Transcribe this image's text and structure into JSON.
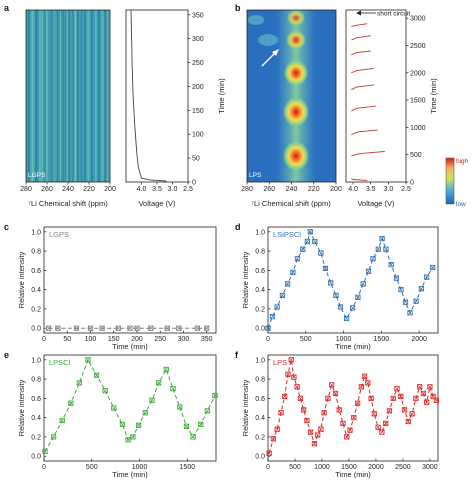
{
  "chart_data": [
    {
      "panel": "a",
      "type": "heatmap",
      "inset_label": "LGPS",
      "xlabel": "⁷Li Chemical shift (ppm)",
      "x_ticks": [
        280,
        260,
        240,
        220,
        200
      ],
      "xlim": [
        280,
        200
      ],
      "voltage_profile": {
        "type": "line",
        "xlabel": "Voltage (V)",
        "ylabel": "Time (min)",
        "x_ticks": [
          "4.0",
          "3.5",
          "3.0",
          "2.5"
        ],
        "y_ticks": [
          0,
          50,
          100,
          150,
          200,
          250,
          300,
          350
        ],
        "xlim": [
          4.5,
          2.5
        ],
        "ylim": [
          0,
          360
        ],
        "points": [
          [
            4.34,
            360
          ],
          [
            4.32,
            300
          ],
          [
            4.3,
            240
          ],
          [
            4.27,
            180
          ],
          [
            4.22,
            120
          ],
          [
            4.15,
            60
          ],
          [
            4.1,
            30
          ],
          [
            4.0,
            8
          ],
          [
            3.7,
            4
          ],
          [
            3.2,
            2
          ]
        ]
      }
    },
    {
      "panel": "b",
      "type": "heatmap",
      "inset_label": "LPS",
      "xlabel": "⁷Li Chemical shift (ppm)",
      "x_ticks": [
        280,
        260,
        240,
        220,
        200
      ],
      "xlim": [
        280,
        200
      ],
      "annotation": "short circuit",
      "colorbar": {
        "high": "high",
        "low": "low"
      },
      "hotspots": [
        {
          "shift": 232,
          "time": 500,
          "intensity": 1.0
        },
        {
          "shift": 233,
          "time": 1300,
          "intensity": 0.85
        },
        {
          "shift": 233,
          "time": 2000,
          "intensity": 0.8
        },
        {
          "shift": 232,
          "time": 2600,
          "intensity": 0.6
        }
      ],
      "voltage_profile": {
        "type": "line",
        "xlabel": "Voltage (V)",
        "ylabel": "Time (min)",
        "x_ticks": [
          "4.0",
          "3.5",
          "3.0",
          "2.5"
        ],
        "y_ticks": [
          0,
          500,
          1000,
          1500,
          2000,
          2500,
          3000
        ],
        "xlim": [
          4.2,
          2.5
        ],
        "ylim": [
          0,
          3150
        ],
        "cycles": [
          [
            [
              3.6,
              30
            ],
            [
              4.0,
              45
            ],
            [
              4.05,
              60
            ]
          ],
          [
            [
              4.05,
              480
            ],
            [
              3.8,
              520
            ],
            [
              3.1,
              560
            ]
          ],
          [
            [
              4.05,
              870
            ],
            [
              3.85,
              920
            ],
            [
              3.3,
              950
            ]
          ],
          [
            [
              4.05,
              1300
            ],
            [
              3.9,
              1350
            ],
            [
              3.35,
              1390
            ]
          ],
          [
            [
              4.05,
              1690
            ],
            [
              3.9,
              1740
            ],
            [
              3.4,
              1780
            ]
          ],
          [
            [
              4.05,
              2000
            ],
            [
              3.9,
              2040
            ],
            [
              3.4,
              2080
            ]
          ],
          [
            [
              4.05,
              2330
            ],
            [
              3.9,
              2370
            ],
            [
              3.5,
              2400
            ]
          ],
          [
            [
              4.05,
              2600
            ],
            [
              3.9,
              2640
            ],
            [
              3.5,
              2680
            ]
          ],
          [
            [
              4.05,
              2850
            ],
            [
              3.9,
              2870
            ],
            [
              3.6,
              2900
            ]
          ]
        ]
      }
    },
    {
      "panel": "c",
      "type": "line",
      "series_label": "LGPS",
      "color": "#7f7f7f",
      "xlabel": "Time (min)",
      "ylabel": "Relative intensity",
      "xlim": [
        0,
        370
      ],
      "ylim": [
        -0.05,
        1.05
      ],
      "x_ticks": [
        0,
        50,
        100,
        150,
        200,
        250,
        300,
        350
      ],
      "y_ticks": [
        "0.0",
        "0.2",
        "0.4",
        "0.6",
        "0.8",
        "1.0"
      ],
      "x": [
        10,
        30,
        70,
        100,
        125,
        160,
        185,
        200,
        230,
        265,
        290,
        330,
        350
      ],
      "y": [
        0,
        0,
        0,
        0,
        0,
        0,
        0,
        0,
        0,
        0,
        0,
        0,
        0
      ]
    },
    {
      "panel": "d",
      "type": "line",
      "series_label": "LSiPSCl",
      "color": "#2f6fad",
      "xlabel": "Time (min)",
      "ylabel": "Relative intensity",
      "xlim": [
        0,
        2250
      ],
      "ylim": [
        -0.05,
        1.05
      ],
      "x_ticks": [
        0,
        500,
        1000,
        1500,
        2000
      ],
      "y_ticks": [
        "0.0",
        "0.2",
        "0.4",
        "0.6",
        "0.8",
        "1.0"
      ],
      "x": [
        0,
        60,
        120,
        190,
        260,
        330,
        390,
        460,
        520,
        560,
        620,
        700,
        760,
        830,
        900,
        960,
        1040,
        1120,
        1190,
        1260,
        1330,
        1390,
        1460,
        1510,
        1560,
        1630,
        1700,
        1760,
        1820,
        1880,
        1960,
        2030,
        2100,
        2180
      ],
      "y": [
        0.0,
        0.12,
        0.22,
        0.34,
        0.46,
        0.58,
        0.72,
        0.82,
        0.9,
        1.0,
        0.9,
        0.78,
        0.62,
        0.47,
        0.34,
        0.22,
        0.1,
        0.21,
        0.32,
        0.46,
        0.59,
        0.72,
        0.82,
        0.93,
        0.82,
        0.66,
        0.52,
        0.4,
        0.27,
        0.16,
        0.28,
        0.41,
        0.53,
        0.63
      ]
    },
    {
      "panel": "e",
      "type": "line",
      "series_label": "LPSCl",
      "color": "#3aa93a",
      "xlabel": "Time (min)",
      "ylabel": "Relative intensity",
      "xlim": [
        0,
        1800
      ],
      "ylim": [
        -0.05,
        1.05
      ],
      "x_ticks": [
        0,
        500,
        1000,
        1500
      ],
      "y_ticks": [
        "0.0",
        "0.2",
        "0.4",
        "0.6",
        "0.8",
        "1.0"
      ],
      "x": [
        10,
        100,
        190,
        280,
        370,
        460,
        550,
        640,
        730,
        820,
        880,
        930,
        990,
        1060,
        1130,
        1200,
        1280,
        1350,
        1420,
        1490,
        1560,
        1640,
        1710,
        1790
      ],
      "y": [
        0.05,
        0.2,
        0.37,
        0.55,
        0.76,
        1.0,
        0.84,
        0.68,
        0.5,
        0.33,
        0.17,
        0.2,
        0.32,
        0.45,
        0.58,
        0.76,
        0.9,
        0.7,
        0.51,
        0.31,
        0.2,
        0.33,
        0.47,
        0.63
      ]
    },
    {
      "panel": "f",
      "type": "line",
      "series_label": "LPS",
      "color": "#d62728",
      "xlabel": "Time (min)",
      "ylabel": "Relative intensity",
      "xlim": [
        0,
        3150
      ],
      "ylim": [
        -0.05,
        1.05
      ],
      "x_ticks": [
        0,
        500,
        1000,
        1500,
        2000,
        2500,
        3000
      ],
      "y_ticks": [
        "0.0",
        "0.2",
        "0.4",
        "0.6",
        "0.8",
        "1.0"
      ],
      "x": [
        20,
        100,
        170,
        240,
        310,
        370,
        430,
        480,
        540,
        600,
        660,
        720,
        790,
        860,
        920,
        980,
        1040,
        1110,
        1180,
        1250,
        1320,
        1390,
        1460,
        1520,
        1590,
        1660,
        1730,
        1790,
        1850,
        1910,
        1970,
        2040,
        2110,
        2180,
        2250,
        2320,
        2390,
        2460,
        2530,
        2600,
        2670,
        2740,
        2810,
        2880,
        2940,
        3000,
        3060,
        3120
      ],
      "y": [
        0.03,
        0.18,
        0.28,
        0.45,
        0.62,
        0.85,
        1.0,
        0.82,
        0.72,
        0.6,
        0.48,
        0.37,
        0.25,
        0.13,
        0.22,
        0.28,
        0.45,
        0.6,
        0.74,
        0.65,
        0.48,
        0.34,
        0.2,
        0.27,
        0.4,
        0.55,
        0.72,
        0.83,
        0.76,
        0.6,
        0.44,
        0.3,
        0.25,
        0.34,
        0.47,
        0.6,
        0.7,
        0.62,
        0.48,
        0.36,
        0.44,
        0.6,
        0.72,
        0.65,
        0.56,
        0.72,
        0.62,
        0.58
      ]
    }
  ]
}
